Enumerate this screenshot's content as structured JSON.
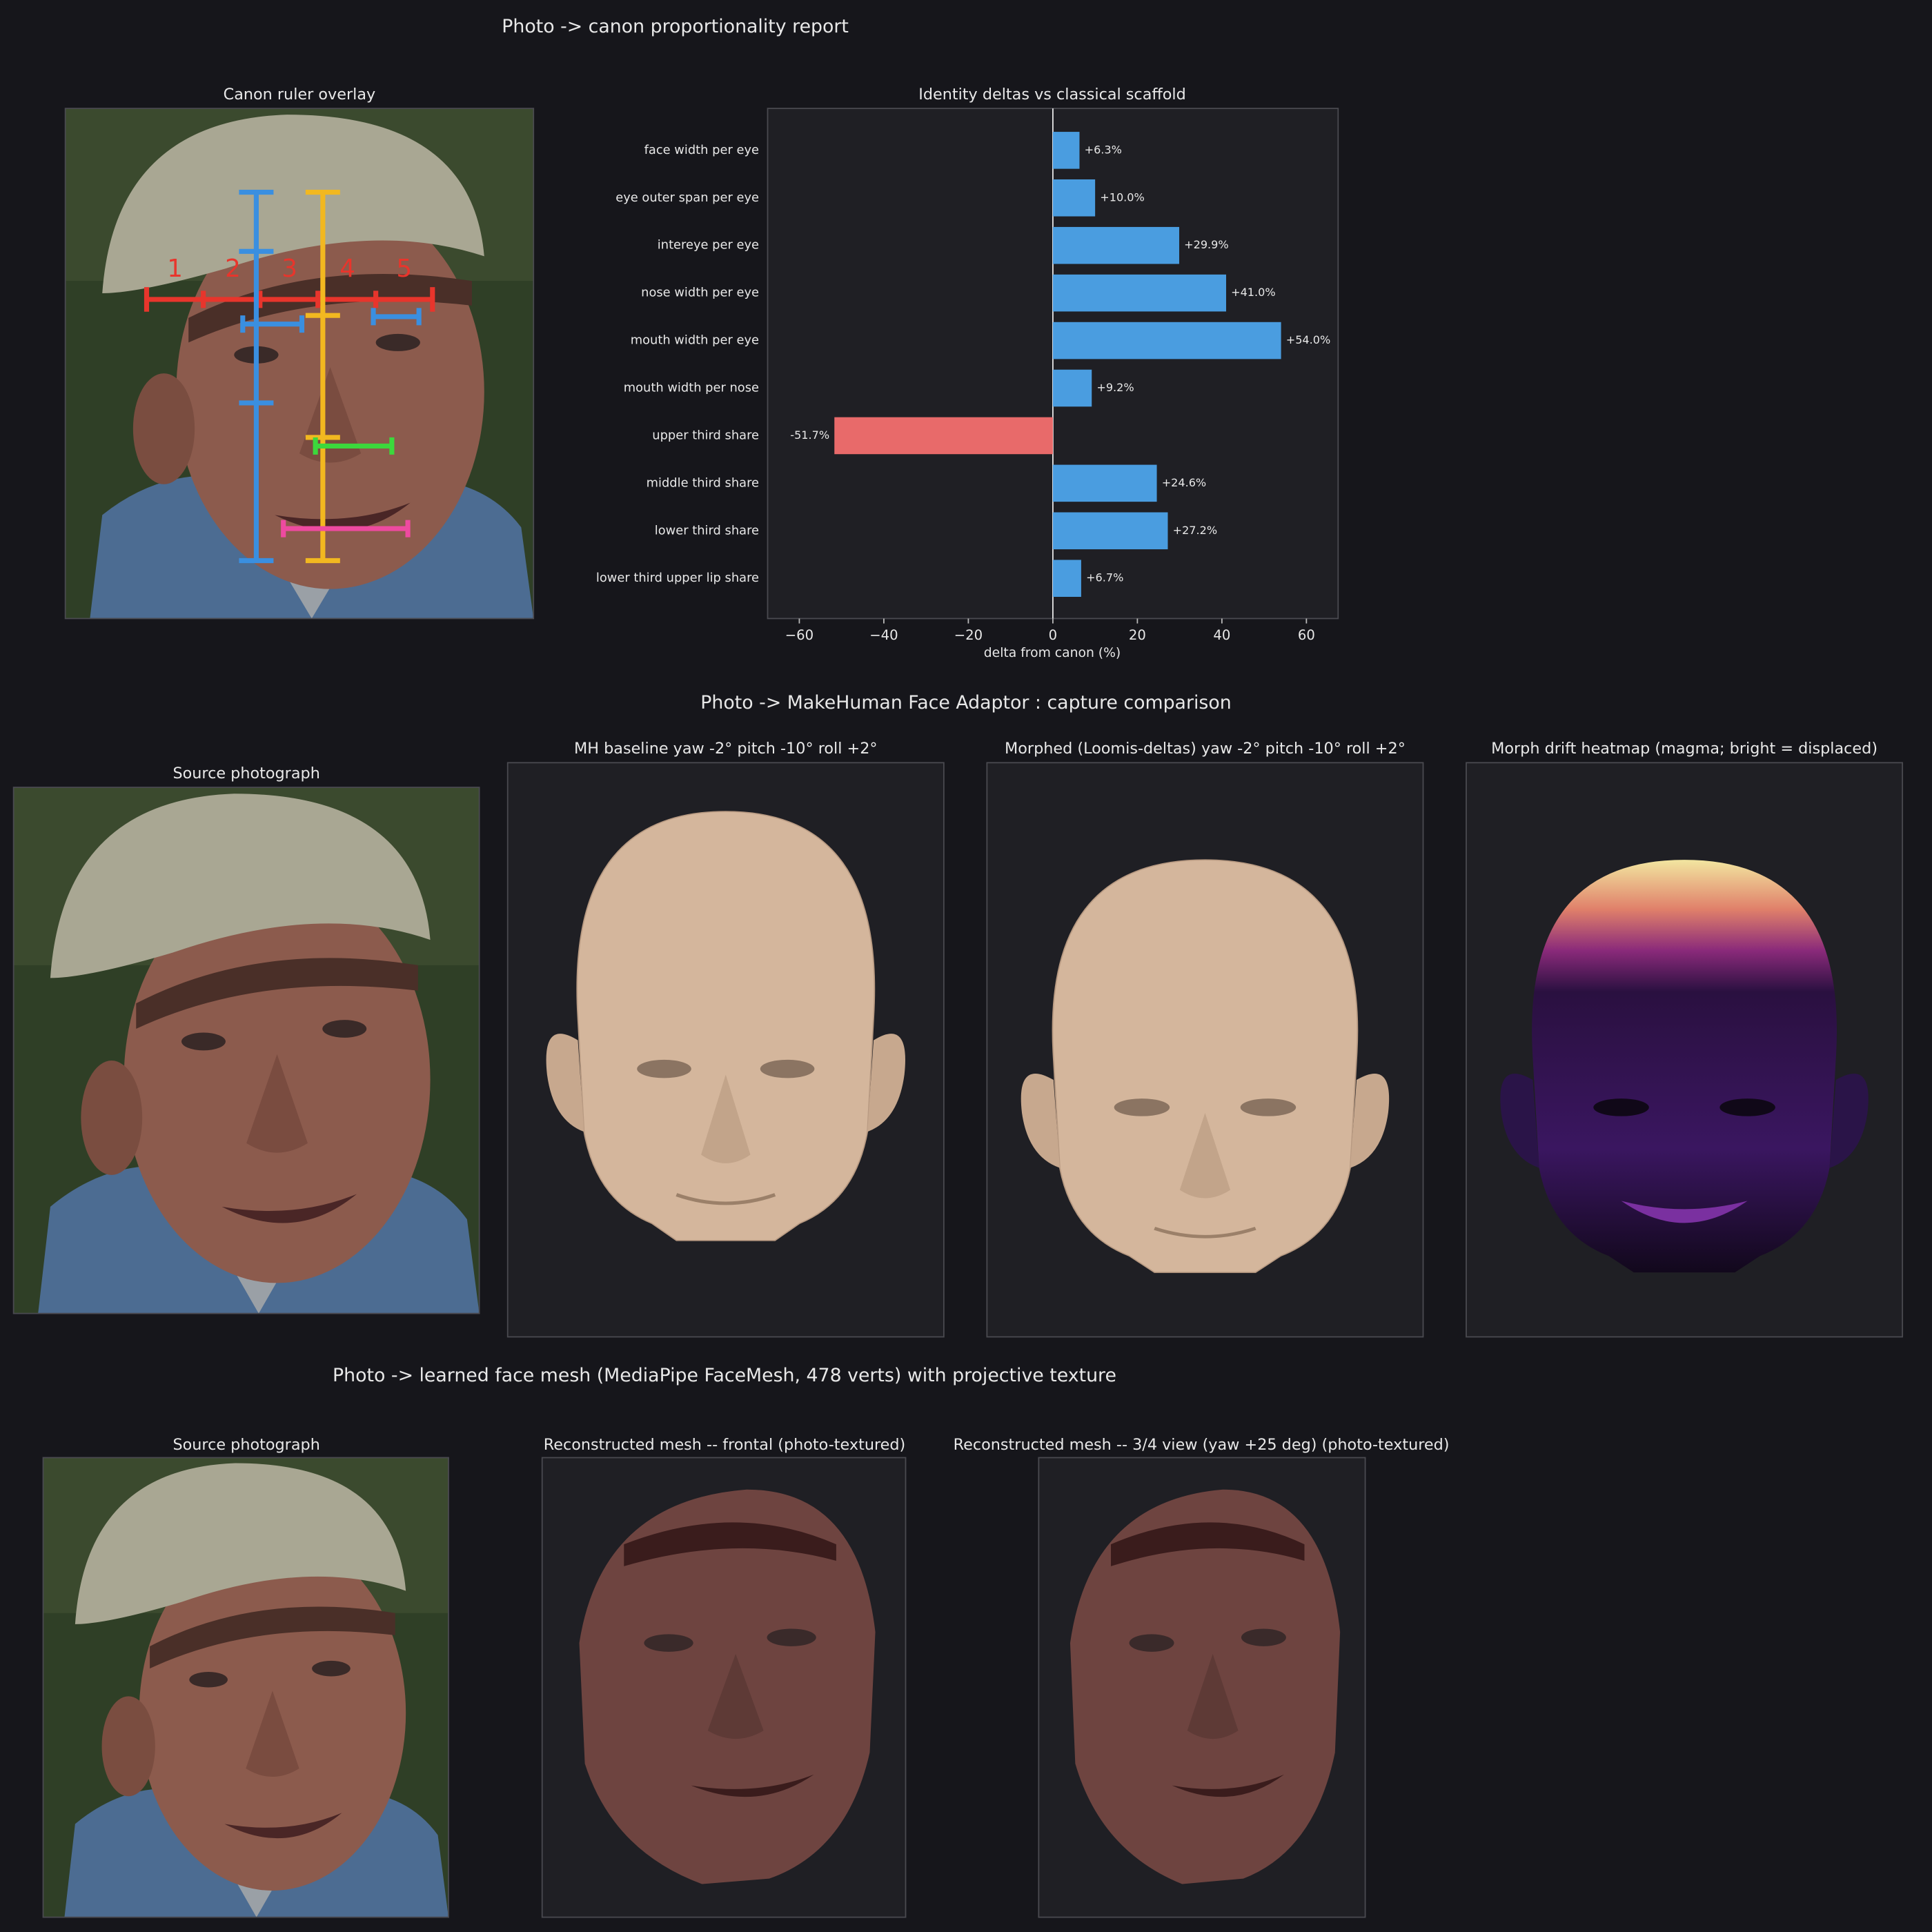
{
  "report": {
    "title": "Photo -> canon proportionality report",
    "overlay_title": "Canon ruler overlay",
    "fifth_labels": [
      "1",
      "2",
      "3",
      "4",
      "5"
    ]
  },
  "chart_data": {
    "type": "barh",
    "title": "Identity deltas vs classical scaffold",
    "x_label": "delta from canon (%)",
    "categories": [
      "face width per eye",
      "eye outer span per eye",
      "intereye per eye",
      "nose width per eye",
      "mouth width per eye",
      "mouth width per nose",
      "upper third share",
      "middle third share",
      "lower third share",
      "lower third upper lip share"
    ],
    "values": [
      6.3,
      10.0,
      29.9,
      41.0,
      54.0,
      9.2,
      -51.7,
      24.6,
      27.2,
      6.7
    ],
    "value_labels": [
      "+6.3%",
      "+10.0%",
      "+29.9%",
      "+41.0%",
      "+54.0%",
      "+9.2%",
      "-51.7%",
      "+24.6%",
      "+27.2%",
      "+6.7%"
    ],
    "positive_color": "#4a9de0",
    "negative_color": "#e86a6a",
    "xlim": [
      -67.5,
      67.5
    ],
    "xticks": [
      {
        "value": -60,
        "label": "−60"
      },
      {
        "value": -40,
        "label": "−40"
      },
      {
        "value": -20,
        "label": "−20"
      },
      0,
      20,
      40,
      60
    ]
  },
  "adaptor": {
    "title": "Photo -> MakeHuman Face Adaptor : capture comparison",
    "source_title": "Source photograph",
    "panel_titles": [
      "MH baseline  yaw -2°  pitch -10°  roll +2°",
      "Morphed (Loomis-deltas)  yaw -2°  pitch -10°  roll +2°",
      "Morph drift heatmap  (magma; bright = displaced)"
    ]
  },
  "mesh": {
    "title": "Photo -> learned face mesh (MediaPipe FaceMesh, 478 verts) with projective texture",
    "source_title": "Source photograph",
    "panel_titles": [
      "Reconstructed mesh -- frontal (photo-textured)",
      "Reconstructed mesh -- 3/4 view (yaw +25 deg) (photo-textured)"
    ]
  }
}
